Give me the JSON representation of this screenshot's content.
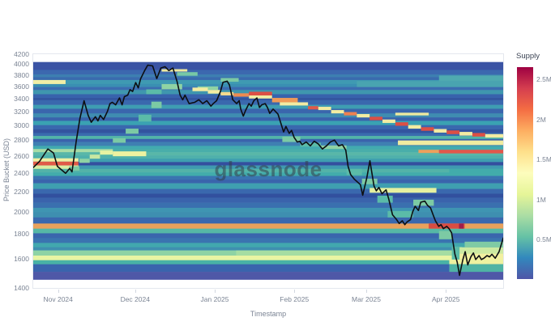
{
  "watermark": "glassnode",
  "chart_data": {
    "type": "heatmap",
    "title": "",
    "xlabel": "Timestamp",
    "ylabel": "Price Bucket (USD)",
    "x_domain_days": 183,
    "x_ticks": [
      {
        "day": 10,
        "label": "Nov 2024"
      },
      {
        "day": 40,
        "label": "Dec 2024"
      },
      {
        "day": 71,
        "label": "Jan 2025"
      },
      {
        "day": 102,
        "label": "Feb 2025"
      },
      {
        "day": 130,
        "label": "Mar 2025"
      },
      {
        "day": 161,
        "label": "Apr 2025"
      }
    ],
    "y_scale": "log",
    "y_domain": [
      1400,
      4200
    ],
    "y_ticks": [
      {
        "value": 1400,
        "label": "1400"
      },
      {
        "value": 1600,
        "label": "1600"
      },
      {
        "value": 1800,
        "label": "1800"
      },
      {
        "value": 2000,
        "label": "2000"
      },
      {
        "value": 2200,
        "label": "2200"
      },
      {
        "value": 2400,
        "label": "2400"
      },
      {
        "value": 2600,
        "label": "2600"
      },
      {
        "value": 2800,
        "label": "2800"
      },
      {
        "value": 3000,
        "label": "3000"
      },
      {
        "value": 3200,
        "label": "3200"
      },
      {
        "value": 3400,
        "label": "3400"
      },
      {
        "value": 3600,
        "label": "3600"
      },
      {
        "value": 3800,
        "label": "3800"
      },
      {
        "value": 4000,
        "label": "4000"
      },
      {
        "value": 4200,
        "label": "4200"
      }
    ],
    "colorbar": {
      "title": "Supply",
      "max_value": 2650000,
      "ticks": [
        {
          "value": 2500000,
          "label": "2.5M"
        },
        {
          "value": 2000000,
          "label": "2M"
        },
        {
          "value": 1500000,
          "label": "1.5M"
        },
        {
          "value": 1000000,
          "label": "1M"
        },
        {
          "value": 500000,
          "label": "0.5M"
        }
      ],
      "colors_bottom_to_top": [
        "#4f55a7",
        "#3288bd",
        "#66c2a5",
        "#abdda4",
        "#e6f598",
        "#fdfdbd",
        "#fee08b",
        "#fdae61",
        "#f46d43",
        "#d53e4f",
        "#9e0142"
      ]
    },
    "heatmap_extent": {
      "price_min": 1455,
      "price_max": 4050
    },
    "base_rows": [
      [
        4050,
        3900,
        "#3a53a4"
      ],
      [
        3900,
        3820,
        "#3c68af"
      ],
      [
        3820,
        3770,
        "#3d7fb1"
      ],
      [
        3770,
        3720,
        "#3a6bae"
      ],
      [
        3720,
        3650,
        "#3f9ab2"
      ],
      [
        3650,
        3600,
        "#3a8fb2"
      ],
      [
        3600,
        3550,
        "#3b6cb0"
      ],
      [
        3550,
        3480,
        "#3f96ae"
      ],
      [
        3480,
        3420,
        "#3862ac"
      ],
      [
        3420,
        3385,
        "#32549f"
      ],
      [
        3385,
        3310,
        "#3a68ae"
      ],
      [
        3310,
        3250,
        "#3e9db2"
      ],
      [
        3250,
        3180,
        "#3a66ad"
      ],
      [
        3180,
        3120,
        "#3f8cb1"
      ],
      [
        3120,
        3070,
        "#3a63ac"
      ],
      [
        3070,
        3010,
        "#3aa2b2"
      ],
      [
        3010,
        2950,
        "#3a68ae"
      ],
      [
        2950,
        2900,
        "#33549f"
      ],
      [
        2900,
        2860,
        "#3a6cae"
      ],
      [
        2860,
        2820,
        "#52b5a8"
      ],
      [
        2820,
        2780,
        "#3a63ac"
      ],
      [
        2780,
        2730,
        "#3f7fb2"
      ],
      [
        2730,
        2690,
        "#42aab0"
      ],
      [
        2690,
        2650,
        "#49aeaa"
      ],
      [
        2650,
        2610,
        "#59b7a8"
      ],
      [
        2610,
        2570,
        "#4fb0ab"
      ],
      [
        2570,
        2530,
        "#3f9fb0"
      ],
      [
        2530,
        2490,
        "#344f9f"
      ],
      [
        2490,
        2450,
        "#3f9ab0"
      ],
      [
        2450,
        2410,
        "#53b3a8"
      ],
      [
        2410,
        2370,
        "#42acab"
      ],
      [
        2370,
        2330,
        "#3a74b0"
      ],
      [
        2330,
        2290,
        "#3a64ac"
      ],
      [
        2290,
        2230,
        "#3f9fb0"
      ],
      [
        2230,
        2180,
        "#3a68ae"
      ],
      [
        2180,
        2140,
        "#32509e"
      ],
      [
        2140,
        2090,
        "#3a63ac"
      ],
      [
        2090,
        2040,
        "#3a70af"
      ],
      [
        2040,
        2000,
        "#3f95b2"
      ],
      [
        2000,
        1950,
        "#3e8fb0"
      ],
      [
        1950,
        1895,
        "#3a68ae"
      ],
      [
        1895,
        1850,
        "#e9a15c"
      ],
      [
        1850,
        1810,
        "#56b8a6"
      ],
      [
        1810,
        1770,
        "#3a66ad"
      ],
      [
        1770,
        1730,
        "#3a74b0"
      ],
      [
        1730,
        1695,
        "#42a8ae"
      ],
      [
        1695,
        1670,
        "#3f8fb0"
      ],
      [
        1670,
        1630,
        "#8ed3a4"
      ],
      [
        1630,
        1595,
        "#e9f5a3"
      ],
      [
        1595,
        1565,
        "#49b2a6"
      ],
      [
        1565,
        1510,
        "#3a64ad"
      ],
      [
        1510,
        1455,
        "#4f58a7"
      ]
    ],
    "segments": [
      [
        0,
        12.6,
        3720,
        3650,
        "#f0eea6"
      ],
      [
        0,
        17.6,
        2575,
        2535,
        "#eff0a2"
      ],
      [
        0,
        17.6,
        2535,
        2490,
        "#e05a48"
      ],
      [
        0,
        17.6,
        2490,
        2450,
        "#d9eda2"
      ],
      [
        0,
        31,
        2690,
        2650,
        "#a8dca6"
      ],
      [
        14,
        18,
        2480,
        2430,
        "#7ccaa4"
      ],
      [
        18,
        22,
        2570,
        2520,
        "#8fd3a4"
      ],
      [
        22,
        26,
        2620,
        2570,
        "#c8e8a2"
      ],
      [
        26,
        31,
        2670,
        2620,
        "#e6f3a2"
      ],
      [
        31,
        44,
        2660,
        2600,
        "#eef2a0"
      ],
      [
        31,
        36,
        2830,
        2770,
        "#7ccaa4"
      ],
      [
        36,
        41,
        2960,
        2890,
        "#7ccaa4"
      ],
      [
        41,
        46,
        3160,
        3060,
        "#5bbba8"
      ],
      [
        46,
        50,
        3360,
        3260,
        "#7ccaa4"
      ],
      [
        44,
        50,
        3560,
        3480,
        "#5bbba8"
      ],
      [
        50,
        58,
        3650,
        3560,
        "#8fd3a4"
      ],
      [
        50,
        60,
        3915,
        3870,
        "#eee89e"
      ],
      [
        56,
        64,
        3860,
        3795,
        "#77c8a6"
      ],
      [
        64,
        72,
        3610,
        3550,
        "#8fd3a4"
      ],
      [
        73,
        80,
        3755,
        3690,
        "#7ccaa4"
      ],
      [
        62,
        68,
        3590,
        3530,
        "#f2eca2"
      ],
      [
        68,
        73,
        3550,
        3490,
        "#f2eca2"
      ],
      [
        73,
        78,
        3515,
        3460,
        "#f5d98e"
      ],
      [
        78,
        84,
        3495,
        3440,
        "#ef8a50"
      ],
      [
        84,
        93,
        3520,
        3460,
        "#dd4f44"
      ],
      [
        84,
        93,
        3460,
        3410,
        "#f2eca2"
      ],
      [
        93,
        103,
        3420,
        3350,
        "#ee9a58"
      ],
      [
        96,
        107,
        3350,
        3300,
        "#f2eca2"
      ],
      [
        107,
        111,
        3290,
        3240,
        "#e05a48"
      ],
      [
        111,
        116,
        3280,
        3230,
        "#f2eca2"
      ],
      [
        116,
        121,
        3230,
        3180,
        "#f2eca2"
      ],
      [
        121,
        126,
        3200,
        3150,
        "#ef8050"
      ],
      [
        126,
        131,
        3170,
        3120,
        "#f2eca2"
      ],
      [
        131,
        136,
        3130,
        3080,
        "#dd4f44"
      ],
      [
        136,
        141,
        3090,
        3040,
        "#f2eca2"
      ],
      [
        141,
        146,
        3050,
        3000,
        "#dd4f44"
      ],
      [
        146,
        151,
        3010,
        2960,
        "#f2eca2"
      ],
      [
        151,
        156,
        2980,
        2930,
        "#dd4f44"
      ],
      [
        156,
        161,
        2955,
        2905,
        "#f2eca2"
      ],
      [
        161,
        166,
        2935,
        2885,
        "#dd4f44"
      ],
      [
        166,
        171,
        2915,
        2865,
        "#f2eca2"
      ],
      [
        171,
        176,
        2900,
        2852,
        "#dd4f44"
      ],
      [
        176,
        183,
        2885,
        2838,
        "#f2eca2"
      ],
      [
        142,
        183,
        2800,
        2740,
        "#f0eca0"
      ],
      [
        150,
        158,
        2680,
        2640,
        "#eda05c"
      ],
      [
        158,
        183,
        2680,
        2635,
        "#e2574b"
      ],
      [
        126,
        183,
        3700,
        3600,
        "#49a4b0"
      ],
      [
        158,
        183,
        3800,
        3700,
        "#4faab0"
      ],
      [
        141,
        154,
        3190,
        3150,
        "#eeeaa0"
      ],
      [
        97,
        104,
        2850,
        2780,
        "#7ccaa4"
      ],
      [
        104,
        112,
        2770,
        2720,
        "#5bbba8"
      ],
      [
        112,
        122,
        2735,
        2690,
        "#8fd3a4"
      ],
      [
        122,
        128,
        2450,
        2380,
        "#5bbba8"
      ],
      [
        128,
        134,
        2340,
        2280,
        "#7ccaa4"
      ],
      [
        131,
        157,
        2240,
        2190,
        "#e6f0a0"
      ],
      [
        134,
        140,
        2160,
        2090,
        "#5bbba8"
      ],
      [
        138,
        148,
        2010,
        1950,
        "#5bbba8"
      ],
      [
        148,
        156,
        2120,
        2060,
        "#7ccaa4"
      ],
      [
        154,
        168,
        1895,
        1850,
        "#d94d42"
      ],
      [
        165.8,
        167.6,
        1895,
        1850,
        "#a01c4a"
      ],
      [
        79,
        183,
        1670,
        1630,
        "#a5dda2"
      ],
      [
        158,
        163,
        1830,
        1760,
        "#7ccaa4"
      ],
      [
        163,
        167,
        1700,
        1560,
        "#5bbba8"
      ],
      [
        162,
        183,
        1600,
        1565,
        "#eef2a0"
      ],
      [
        162,
        183,
        1565,
        1510,
        "#4fb4a4"
      ],
      [
        166,
        183,
        1645,
        1600,
        "#f2f0a0"
      ],
      [
        166,
        183,
        1695,
        1645,
        "#cdeaa2"
      ],
      [
        168,
        183,
        1740,
        1695,
        "#7fcba4"
      ],
      [
        162,
        183,
        2450,
        2390,
        "#42acab"
      ]
    ],
    "price_line": [
      [
        0,
        2465
      ],
      [
        2.5,
        2540
      ],
      [
        5.7,
        2690
      ],
      [
        7.9,
        2640
      ],
      [
        9.4,
        2480
      ],
      [
        12.6,
        2400
      ],
      [
        14.2,
        2455
      ],
      [
        15.1,
        2415
      ],
      [
        16.7,
        2780
      ],
      [
        18.2,
        3110
      ],
      [
        19.8,
        3375
      ],
      [
        21.4,
        3150
      ],
      [
        22.6,
        3050
      ],
      [
        24.2,
        3130
      ],
      [
        25.2,
        3070
      ],
      [
        26.1,
        3150
      ],
      [
        27.4,
        3090
      ],
      [
        28.9,
        3210
      ],
      [
        29.9,
        3330
      ],
      [
        30.8,
        3350
      ],
      [
        32.1,
        3310
      ],
      [
        33.6,
        3420
      ],
      [
        34.6,
        3310
      ],
      [
        35.5,
        3440
      ],
      [
        36.8,
        3465
      ],
      [
        37.7,
        3555
      ],
      [
        38.7,
        3525
      ],
      [
        39.9,
        3675
      ],
      [
        40.9,
        3585
      ],
      [
        41.8,
        3740
      ],
      [
        43.4,
        3890
      ],
      [
        44.6,
        3990
      ],
      [
        46.5,
        3975
      ],
      [
        48.1,
        3745
      ],
      [
        49.7,
        3935
      ],
      [
        51.3,
        3960
      ],
      [
        52.8,
        3890
      ],
      [
        54.4,
        3935
      ],
      [
        56,
        3695
      ],
      [
        57.2,
        3465
      ],
      [
        58.2,
        3390
      ],
      [
        59.1,
        3465
      ],
      [
        60.7,
        3330
      ],
      [
        62.9,
        3350
      ],
      [
        64.5,
        3390
      ],
      [
        66,
        3330
      ],
      [
        67.6,
        3375
      ],
      [
        69.2,
        3290
      ],
      [
        70.1,
        3330
      ],
      [
        71.4,
        3375
      ],
      [
        72.9,
        3525
      ],
      [
        73.9,
        3680
      ],
      [
        75.5,
        3700
      ],
      [
        76.4,
        3635
      ],
      [
        77.7,
        3390
      ],
      [
        79.2,
        3330
      ],
      [
        80.2,
        3375
      ],
      [
        80.8,
        3245
      ],
      [
        81.8,
        3140
      ],
      [
        82.7,
        3225
      ],
      [
        84,
        3330
      ],
      [
        84.9,
        3290
      ],
      [
        85.9,
        3375
      ],
      [
        87.1,
        3420
      ],
      [
        88.1,
        3270
      ],
      [
        89,
        3310
      ],
      [
        90.3,
        3330
      ],
      [
        91.2,
        3270
      ],
      [
        92.1,
        3180
      ],
      [
        93.4,
        3245
      ],
      [
        94.3,
        3210
      ],
      [
        95.3,
        3170
      ],
      [
        97.5,
        2915
      ],
      [
        98.4,
        2990
      ],
      [
        99.7,
        2895
      ],
      [
        100.6,
        2935
      ],
      [
        101.6,
        2840
      ],
      [
        102.8,
        2780
      ],
      [
        103.8,
        2790
      ],
      [
        104.7,
        2745
      ],
      [
        106.3,
        2780
      ],
      [
        107.9,
        2730
      ],
      [
        109.4,
        2790
      ],
      [
        111,
        2755
      ],
      [
        112.6,
        2690
      ],
      [
        114.2,
        2730
      ],
      [
        115.7,
        2780
      ],
      [
        117.3,
        2805
      ],
      [
        118.9,
        2730
      ],
      [
        120.4,
        2745
      ],
      [
        121.7,
        2675
      ],
      [
        122.6,
        2480
      ],
      [
        123.6,
        2385
      ],
      [
        125,
        2335
      ],
      [
        127.4,
        2275
      ],
      [
        128.3,
        2165
      ],
      [
        129.9,
        2350
      ],
      [
        131.1,
        2545
      ],
      [
        132.7,
        2260
      ],
      [
        133.6,
        2210
      ],
      [
        134.6,
        2245
      ],
      [
        135.8,
        2180
      ],
      [
        137.4,
        2220
      ],
      [
        138.4,
        2130
      ],
      [
        139.9,
        1975
      ],
      [
        141.5,
        1930
      ],
      [
        142.5,
        1895
      ],
      [
        143.7,
        1920
      ],
      [
        144.7,
        1885
      ],
      [
        145.6,
        1910
      ],
      [
        146.9,
        1930
      ],
      [
        147.8,
        2005
      ],
      [
        148.7,
        2055
      ],
      [
        150,
        2015
      ],
      [
        150.9,
        2095
      ],
      [
        152.5,
        2105
      ],
      [
        153.5,
        2065
      ],
      [
        154.7,
        2040
      ],
      [
        155.7,
        1975
      ],
      [
        156.6,
        1920
      ],
      [
        157.9,
        1870
      ],
      [
        158.8,
        1885
      ],
      [
        159.7,
        1850
      ],
      [
        161,
        1870
      ],
      [
        161.9,
        1850
      ],
      [
        162.9,
        1815
      ],
      [
        164.2,
        1640
      ],
      [
        165.1,
        1580
      ],
      [
        166,
        1485
      ],
      [
        167.3,
        1600
      ],
      [
        168.2,
        1660
      ],
      [
        169.2,
        1560
      ],
      [
        170.4,
        1620
      ],
      [
        171.4,
        1650
      ],
      [
        172.3,
        1600
      ],
      [
        173.6,
        1630
      ],
      [
        174.5,
        1600
      ],
      [
        175.5,
        1610
      ],
      [
        176.7,
        1630
      ],
      [
        177.7,
        1620
      ],
      [
        178.6,
        1640
      ],
      [
        179.9,
        1610
      ],
      [
        181.4,
        1660
      ],
      [
        183,
        1770
      ]
    ],
    "price_line_color": "#0d0f12"
  }
}
